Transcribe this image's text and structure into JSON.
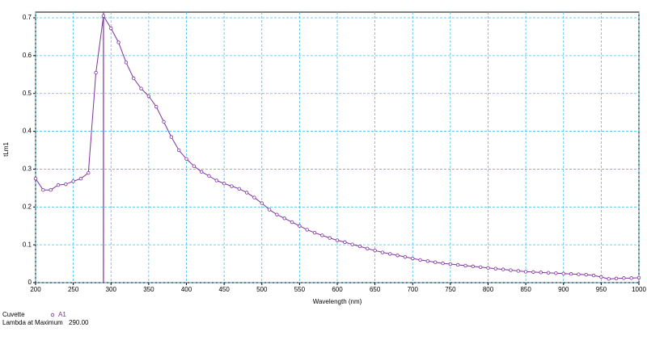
{
  "chart_data": {
    "type": "line",
    "x_label": "Wavelength (nm)",
    "y_label": "tLm1",
    "x": [
      200,
      210,
      220,
      230,
      240,
      250,
      260,
      270,
      280,
      290,
      300,
      310,
      320,
      330,
      340,
      350,
      360,
      370,
      380,
      390,
      400,
      410,
      420,
      430,
      440,
      450,
      460,
      470,
      480,
      490,
      500,
      510,
      520,
      530,
      540,
      550,
      560,
      570,
      580,
      590,
      600,
      610,
      620,
      630,
      640,
      650,
      660,
      670,
      680,
      690,
      700,
      710,
      720,
      730,
      740,
      750,
      760,
      770,
      780,
      790,
      800,
      810,
      820,
      830,
      840,
      850,
      860,
      870,
      880,
      890,
      900,
      910,
      920,
      930,
      940,
      950,
      960,
      970,
      980,
      990,
      1000
    ],
    "series": [
      {
        "name": "A1",
        "color": "#8030a0",
        "values": [
          0.275,
          0.245,
          0.245,
          0.258,
          0.26,
          0.268,
          0.275,
          0.29,
          0.555,
          0.705,
          0.672,
          0.635,
          0.582,
          0.54,
          0.513,
          0.493,
          0.465,
          0.425,
          0.385,
          0.35,
          0.327,
          0.308,
          0.293,
          0.282,
          0.27,
          0.262,
          0.255,
          0.248,
          0.238,
          0.225,
          0.21,
          0.193,
          0.18,
          0.17,
          0.16,
          0.15,
          0.14,
          0.132,
          0.125,
          0.118,
          0.112,
          0.107,
          0.101,
          0.096,
          0.09,
          0.085,
          0.08,
          0.076,
          0.072,
          0.068,
          0.064,
          0.06,
          0.057,
          0.054,
          0.051,
          0.049,
          0.047,
          0.045,
          0.043,
          0.041,
          0.039,
          0.037,
          0.035,
          0.033,
          0.031,
          0.029,
          0.028,
          0.027,
          0.026,
          0.025,
          0.024,
          0.023,
          0.022,
          0.021,
          0.019,
          0.015,
          0.01,
          0.011,
          0.012,
          0.012,
          0.013
        ]
      }
    ],
    "xlim": [
      200,
      1000
    ],
    "ylim": [
      0,
      0.715
    ],
    "xticks": [
      200,
      250,
      300,
      350,
      400,
      450,
      500,
      550,
      600,
      650,
      700,
      750,
      800,
      850,
      900,
      950,
      1000
    ],
    "yticks": [
      0,
      0.1,
      0.2,
      0.3,
      0.4,
      0.5,
      0.6,
      0.7
    ],
    "grid": true,
    "grid_color": "#40c0f0",
    "footer": {
      "cuvette_label": "Cuvette",
      "lambda_label": "Lambda at Maximum",
      "lambda_max": {
        "value": 290,
        "label": "290.00"
      }
    }
  }
}
